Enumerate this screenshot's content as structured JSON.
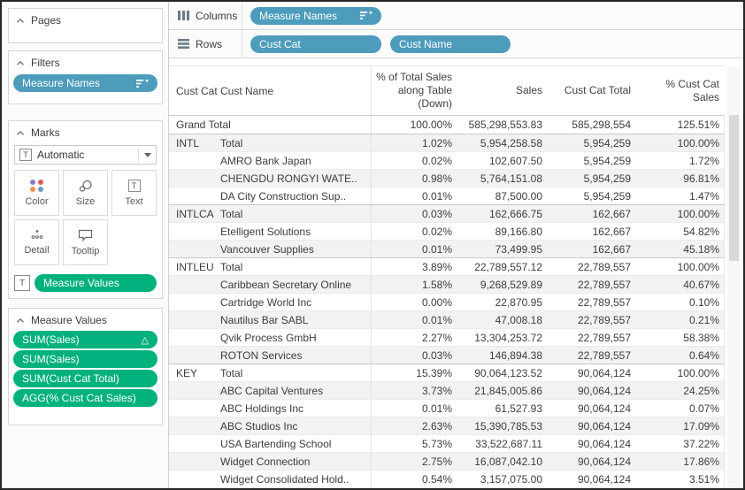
{
  "colors": {
    "pill_blue": "#4d9cbc",
    "pill_green": "#00b17e",
    "band_gray": "#f2f2f2",
    "color_icon_dots": [
      "#8b7bc7",
      "#e05c5c",
      "#ef9150",
      "#6d9bc3"
    ]
  },
  "sidebar": {
    "pages": {
      "title": "Pages"
    },
    "filters": {
      "title": "Filters",
      "pill": {
        "label": "Measure Names"
      }
    },
    "marks": {
      "title": "Marks",
      "mark_type": "Automatic",
      "type_icon": "T",
      "buttons": {
        "color": "Color",
        "size": "Size",
        "text": "Text",
        "detail": "Detail",
        "tooltip": "Tooltip"
      },
      "text_shelf_pill": {
        "label": "Measure Values"
      }
    },
    "measure_values": {
      "title": "Measure Values",
      "pills": [
        {
          "label": "SUM(Sales)",
          "badge": "△"
        },
        {
          "label": "SUM(Sales)",
          "badge": ""
        },
        {
          "label": "SUM(Cust Cat Total)",
          "badge": ""
        },
        {
          "label": "AGG(% Cust Cat Sales)",
          "badge": ""
        }
      ]
    }
  },
  "shelves": {
    "columns": {
      "label": "Columns",
      "pill": {
        "label": "Measure Names"
      }
    },
    "rows": {
      "label": "Rows",
      "pills": [
        {
          "label": "Cust Cat"
        },
        {
          "label": "Cust Name"
        }
      ]
    }
  },
  "table": {
    "headers": {
      "cust_cat": "Cust Cat",
      "cust_name": "Cust Name",
      "pct_total": "% of Total Sales\nalong Table\n(Down)",
      "sales": "Sales",
      "cat_total": "Cust Cat Total",
      "pct_cat": "% Cust Cat\nSales"
    },
    "rows": [
      {
        "cat": "Grand Total",
        "name": "",
        "pct_total": "100.00%",
        "sales": "585,298,553.83",
        "cat_total": "585,298,554",
        "pct_cat": "125.51%",
        "group_start": false
      },
      {
        "cat": "INTL",
        "name": "Total",
        "pct_total": "1.02%",
        "sales": "5,954,258.58",
        "cat_total": "5,954,259",
        "pct_cat": "100.00%",
        "group_start": true
      },
      {
        "cat": "",
        "name": "AMRO Bank Japan",
        "pct_total": "0.02%",
        "sales": "102,607.50",
        "cat_total": "5,954,259",
        "pct_cat": "1.72%",
        "group_start": false
      },
      {
        "cat": "",
        "name": "CHENGDU RONGYI WATE..",
        "pct_total": "0.98%",
        "sales": "5,764,151.08",
        "cat_total": "5,954,259",
        "pct_cat": "96.81%",
        "group_start": false
      },
      {
        "cat": "",
        "name": "DA City Construction Sup..",
        "pct_total": "0.01%",
        "sales": "87,500.00",
        "cat_total": "5,954,259",
        "pct_cat": "1.47%",
        "group_start": false
      },
      {
        "cat": "INTLCA",
        "name": "Total",
        "pct_total": "0.03%",
        "sales": "162,666.75",
        "cat_total": "162,667",
        "pct_cat": "100.00%",
        "group_start": true
      },
      {
        "cat": "",
        "name": "Etelligent Solutions",
        "pct_total": "0.02%",
        "sales": "89,166.80",
        "cat_total": "162,667",
        "pct_cat": "54.82%",
        "group_start": false
      },
      {
        "cat": "",
        "name": "Vancouver Supplies",
        "pct_total": "0.01%",
        "sales": "73,499.95",
        "cat_total": "162,667",
        "pct_cat": "45.18%",
        "group_start": false
      },
      {
        "cat": "INTLEU",
        "name": "Total",
        "pct_total": "3.89%",
        "sales": "22,789,557.12",
        "cat_total": "22,789,557",
        "pct_cat": "100.00%",
        "group_start": true
      },
      {
        "cat": "",
        "name": "Caribbean Secretary Online",
        "pct_total": "1.58%",
        "sales": "9,268,529.89",
        "cat_total": "22,789,557",
        "pct_cat": "40.67%",
        "group_start": false
      },
      {
        "cat": "",
        "name": "Cartridge World Inc",
        "pct_total": "0.00%",
        "sales": "22,870.95",
        "cat_total": "22,789,557",
        "pct_cat": "0.10%",
        "group_start": false
      },
      {
        "cat": "",
        "name": "Nautilus Bar SABL",
        "pct_total": "0.01%",
        "sales": "47,008.18",
        "cat_total": "22,789,557",
        "pct_cat": "0.21%",
        "group_start": false
      },
      {
        "cat": "",
        "name": "Qvik Process GmbH",
        "pct_total": "2.27%",
        "sales": "13,304,253.72",
        "cat_total": "22,789,557",
        "pct_cat": "58.38%",
        "group_start": false
      },
      {
        "cat": "",
        "name": "ROTON Services",
        "pct_total": "0.03%",
        "sales": "146,894.38",
        "cat_total": "22,789,557",
        "pct_cat": "0.64%",
        "group_start": false
      },
      {
        "cat": "KEY",
        "name": "Total",
        "pct_total": "15.39%",
        "sales": "90,064,123.52",
        "cat_total": "90,064,124",
        "pct_cat": "100.00%",
        "group_start": true
      },
      {
        "cat": "",
        "name": "ABC Capital Ventures",
        "pct_total": "3.73%",
        "sales": "21,845,005.86",
        "cat_total": "90,064,124",
        "pct_cat": "24.25%",
        "group_start": false
      },
      {
        "cat": "",
        "name": "ABC Holdings Inc",
        "pct_total": "0.01%",
        "sales": "61,527.93",
        "cat_total": "90,064,124",
        "pct_cat": "0.07%",
        "group_start": false
      },
      {
        "cat": "",
        "name": "ABC Studios Inc",
        "pct_total": "2.63%",
        "sales": "15,390,785.53",
        "cat_total": "90,064,124",
        "pct_cat": "17.09%",
        "group_start": false
      },
      {
        "cat": "",
        "name": "USA Bartending School",
        "pct_total": "5.73%",
        "sales": "33,522,687.11",
        "cat_total": "90,064,124",
        "pct_cat": "37.22%",
        "group_start": false
      },
      {
        "cat": "",
        "name": "Widget Connection",
        "pct_total": "2.75%",
        "sales": "16,087,042.10",
        "cat_total": "90,064,124",
        "pct_cat": "17.86%",
        "group_start": false
      },
      {
        "cat": "",
        "name": "Widget Consolidated Hold..",
        "pct_total": "0.54%",
        "sales": "3,157,075.00",
        "cat_total": "90,064,124",
        "pct_cat": "3.51%",
        "group_start": false
      }
    ]
  }
}
